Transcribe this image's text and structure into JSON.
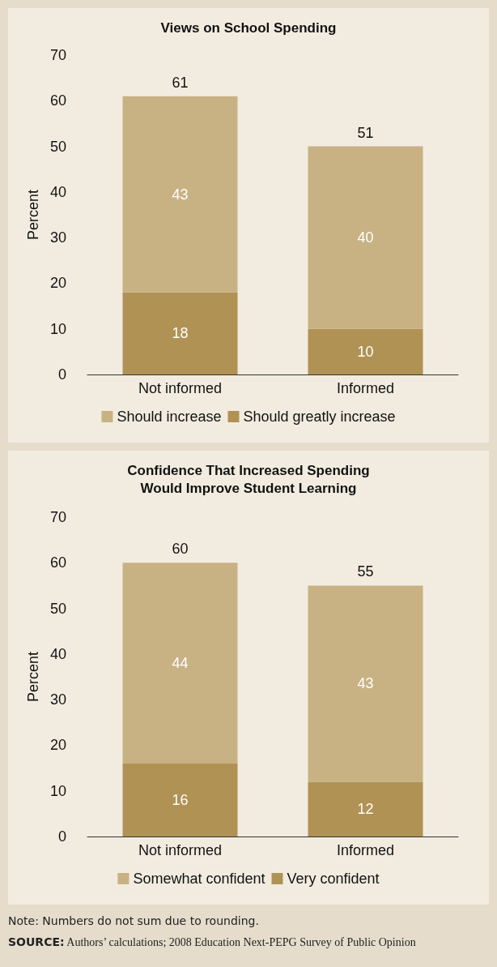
{
  "chart_data": [
    {
      "type": "bar",
      "title": "Views on School Spending",
      "ylabel": "Percent",
      "categories": [
        "Not informed",
        "Informed"
      ],
      "stacked": true,
      "ylim": [
        0,
        70
      ],
      "yticks": [
        0,
        10,
        20,
        30,
        40,
        50,
        60,
        70
      ],
      "grid": false,
      "legend": "bottom",
      "data_labels": true,
      "totals": [
        "61",
        "51"
      ],
      "series": [
        {
          "name": "Should greatly increase",
          "color": "#b09254",
          "values": [
            18,
            10
          ]
        },
        {
          "name": "Should increase",
          "color": "#c8b183",
          "values": [
            43,
            40
          ]
        }
      ]
    },
    {
      "type": "bar",
      "title": "Confidence That Increased Spending\nWould Improve Student Learning",
      "ylabel": "Percent",
      "categories": [
        "Not informed",
        "Informed"
      ],
      "stacked": true,
      "ylim": [
        0,
        70
      ],
      "yticks": [
        0,
        10,
        20,
        30,
        40,
        50,
        60,
        70
      ],
      "grid": false,
      "legend": "bottom",
      "data_labels": true,
      "totals": [
        "60",
        "55"
      ],
      "annotations": [
        "Note: Numbers do not sum due to rounding.",
        "SOURCE: Authors’ calculations; 2008 Education Next-PEPG Survey of Public Opinion"
      ],
      "series": [
        {
          "name": "Very confident",
          "color": "#b09254",
          "values": [
            16,
            12
          ]
        },
        {
          "name": "Somewhat confident",
          "color": "#c8b183",
          "values": [
            44,
            43
          ]
        }
      ]
    }
  ]
}
